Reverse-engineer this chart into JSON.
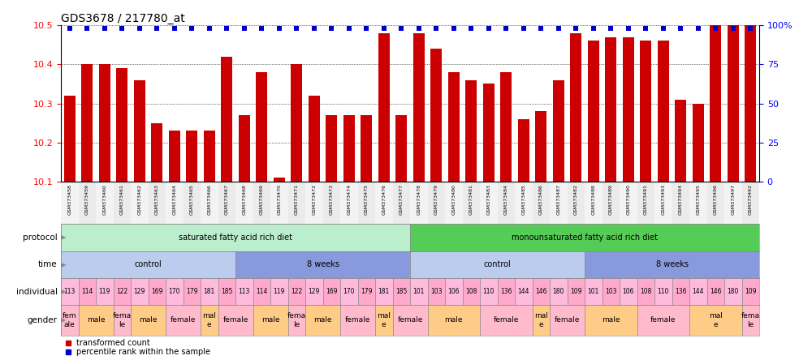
{
  "title": "GDS3678 / 217780_at",
  "samples": [
    "GSM373458",
    "GSM373459",
    "GSM373460",
    "GSM373461",
    "GSM373462",
    "GSM373463",
    "GSM373464",
    "GSM373465",
    "GSM373466",
    "GSM373467",
    "GSM373468",
    "GSM373469",
    "GSM373470",
    "GSM373471",
    "GSM373472",
    "GSM373473",
    "GSM373474",
    "GSM373475",
    "GSM373476",
    "GSM373477",
    "GSM373478",
    "GSM373479",
    "GSM373480",
    "GSM373481",
    "GSM373483",
    "GSM373484",
    "GSM373485",
    "GSM373486",
    "GSM373487",
    "GSM373482",
    "GSM373488",
    "GSM373489",
    "GSM373490",
    "GSM373491",
    "GSM373493",
    "GSM373494",
    "GSM373495",
    "GSM373496",
    "GSM373497",
    "GSM373492"
  ],
  "bar_values": [
    10.32,
    10.4,
    10.4,
    10.39,
    10.36,
    10.25,
    10.23,
    10.23,
    10.23,
    10.42,
    10.27,
    10.38,
    10.11,
    10.4,
    10.32,
    10.27,
    10.27,
    10.27,
    10.48,
    10.27,
    10.48,
    10.44,
    10.38,
    10.36,
    10.35,
    10.38,
    10.26,
    10.28,
    10.36,
    10.48,
    10.46,
    10.47,
    10.47,
    10.46,
    10.46,
    10.31,
    10.3,
    10.5,
    10.72,
    10.52
  ],
  "percentile_values": [
    98,
    98,
    98,
    98,
    98,
    98,
    98,
    98,
    98,
    98,
    98,
    98,
    98,
    98,
    98,
    98,
    98,
    98,
    98,
    98,
    98,
    98,
    98,
    98,
    98,
    98,
    98,
    98,
    98,
    98,
    98,
    98,
    98,
    98,
    98,
    98,
    98,
    98,
    98,
    98
  ],
  "ylim_left": [
    10.1,
    10.5
  ],
  "ylim_right": [
    0,
    100
  ],
  "yticks_left": [
    10.1,
    10.2,
    10.3,
    10.4,
    10.5
  ],
  "yticks_right": [
    0,
    25,
    50,
    75,
    100
  ],
  "bar_color": "#cc0000",
  "marker_color": "#0000cc",
  "protocol_spans": [
    {
      "label": "saturated fatty acid rich diet",
      "start": 0,
      "end": 20,
      "color": "#bbeecc"
    },
    {
      "label": "monounsaturated fatty acid rich diet",
      "start": 20,
      "end": 40,
      "color": "#55cc55"
    }
  ],
  "time_spans": [
    {
      "label": "control",
      "start": 0,
      "end": 10,
      "color": "#bbccee"
    },
    {
      "label": "8 weeks",
      "start": 10,
      "end": 20,
      "color": "#8899dd"
    },
    {
      "label": "control",
      "start": 20,
      "end": 30,
      "color": "#bbccee"
    },
    {
      "label": "8 weeks",
      "start": 30,
      "end": 40,
      "color": "#8899dd"
    }
  ],
  "individual_data": [
    {
      "label": "113",
      "start": 0,
      "end": 1
    },
    {
      "label": "114",
      "start": 1,
      "end": 2
    },
    {
      "label": "119",
      "start": 2,
      "end": 3
    },
    {
      "label": "122",
      "start": 3,
      "end": 4
    },
    {
      "label": "129",
      "start": 4,
      "end": 5
    },
    {
      "label": "169",
      "start": 5,
      "end": 6
    },
    {
      "label": "170",
      "start": 6,
      "end": 7
    },
    {
      "label": "179",
      "start": 7,
      "end": 8
    },
    {
      "label": "181",
      "start": 8,
      "end": 9
    },
    {
      "label": "185",
      "start": 9,
      "end": 10
    },
    {
      "label": "113",
      "start": 10,
      "end": 11
    },
    {
      "label": "114",
      "start": 11,
      "end": 12
    },
    {
      "label": "119",
      "start": 12,
      "end": 13
    },
    {
      "label": "122",
      "start": 13,
      "end": 14
    },
    {
      "label": "129",
      "start": 14,
      "end": 15
    },
    {
      "label": "169",
      "start": 15,
      "end": 16
    },
    {
      "label": "170",
      "start": 16,
      "end": 17
    },
    {
      "label": "179",
      "start": 17,
      "end": 18
    },
    {
      "label": "181",
      "start": 18,
      "end": 19
    },
    {
      "label": "185",
      "start": 19,
      "end": 20
    },
    {
      "label": "101",
      "start": 20,
      "end": 21
    },
    {
      "label": "103",
      "start": 21,
      "end": 22
    },
    {
      "label": "106",
      "start": 22,
      "end": 23
    },
    {
      "label": "108",
      "start": 23,
      "end": 24
    },
    {
      "label": "110",
      "start": 24,
      "end": 25
    },
    {
      "label": "136",
      "start": 25,
      "end": 26
    },
    {
      "label": "144",
      "start": 26,
      "end": 27
    },
    {
      "label": "146",
      "start": 27,
      "end": 28
    },
    {
      "label": "180",
      "start": 28,
      "end": 29
    },
    {
      "label": "109",
      "start": 29,
      "end": 30
    },
    {
      "label": "101",
      "start": 30,
      "end": 31
    },
    {
      "label": "103",
      "start": 31,
      "end": 32
    },
    {
      "label": "106",
      "start": 32,
      "end": 33
    },
    {
      "label": "108",
      "start": 33,
      "end": 34
    },
    {
      "label": "110",
      "start": 34,
      "end": 35
    },
    {
      "label": "136",
      "start": 35,
      "end": 36
    },
    {
      "label": "144",
      "start": 36,
      "end": 37
    },
    {
      "label": "146",
      "start": 37,
      "end": 38
    },
    {
      "label": "180",
      "start": 38,
      "end": 39
    },
    {
      "label": "109",
      "start": 39,
      "end": 40
    }
  ],
  "gender_data": [
    {
      "label": "fem\nale",
      "start": 0,
      "end": 1,
      "color": "#ffbbcc"
    },
    {
      "label": "male",
      "start": 1,
      "end": 3,
      "color": "#ffcc88"
    },
    {
      "label": "fema\nle",
      "start": 3,
      "end": 4,
      "color": "#ffbbcc"
    },
    {
      "label": "male",
      "start": 4,
      "end": 6,
      "color": "#ffcc88"
    },
    {
      "label": "female",
      "start": 6,
      "end": 8,
      "color": "#ffbbcc"
    },
    {
      "label": "mal\ne",
      "start": 8,
      "end": 9,
      "color": "#ffcc88"
    },
    {
      "label": "female",
      "start": 9,
      "end": 11,
      "color": "#ffbbcc"
    },
    {
      "label": "male",
      "start": 11,
      "end": 13,
      "color": "#ffcc88"
    },
    {
      "label": "fema\nle",
      "start": 13,
      "end": 14,
      "color": "#ffbbcc"
    },
    {
      "label": "male",
      "start": 14,
      "end": 16,
      "color": "#ffcc88"
    },
    {
      "label": "female",
      "start": 16,
      "end": 18,
      "color": "#ffbbcc"
    },
    {
      "label": "mal\ne",
      "start": 18,
      "end": 19,
      "color": "#ffcc88"
    },
    {
      "label": "female",
      "start": 19,
      "end": 21,
      "color": "#ffbbcc"
    },
    {
      "label": "male",
      "start": 21,
      "end": 24,
      "color": "#ffcc88"
    },
    {
      "label": "female",
      "start": 24,
      "end": 27,
      "color": "#ffbbcc"
    },
    {
      "label": "mal\ne",
      "start": 27,
      "end": 28,
      "color": "#ffcc88"
    },
    {
      "label": "female",
      "start": 28,
      "end": 30,
      "color": "#ffbbcc"
    },
    {
      "label": "male",
      "start": 30,
      "end": 33,
      "color": "#ffcc88"
    },
    {
      "label": "female",
      "start": 33,
      "end": 36,
      "color": "#ffbbcc"
    },
    {
      "label": "mal\ne",
      "start": 36,
      "end": 39,
      "color": "#ffcc88"
    },
    {
      "label": "fema\nle",
      "start": 39,
      "end": 40,
      "color": "#ffbbcc"
    }
  ],
  "legend_items": [
    {
      "color": "#cc0000",
      "marker": "s",
      "label": "transformed count"
    },
    {
      "color": "#0000cc",
      "marker": "s",
      "label": "percentile rank within the sample"
    }
  ],
  "row_labels": [
    "protocol",
    "time",
    "individual",
    "gender"
  ],
  "ind_color": "#ffbbdd",
  "bg_color": "#ffffff"
}
